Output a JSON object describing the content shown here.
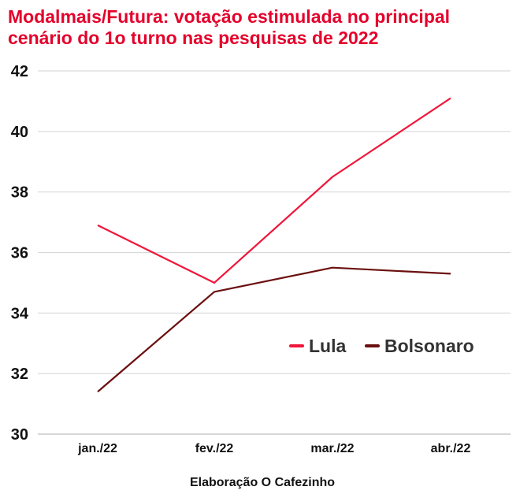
{
  "chart_data": {
    "type": "line",
    "title": "Modalmais/Futura: votação estimulada no principal\ncenário do 1o turno nas pesquisas de 2022",
    "xlabel": "Elaboração O Cafezinho",
    "ylabel": "",
    "categories": [
      "jan./22",
      "fev./22",
      "mar./22",
      "abr./22"
    ],
    "ylim": [
      30,
      42
    ],
    "yticks": [
      30,
      32,
      34,
      36,
      38,
      40,
      42
    ],
    "grid": true,
    "legend_position": "right-middle",
    "series": [
      {
        "name": "Lula",
        "color": "#f0163a",
        "values": [
          36.9,
          35.0,
          38.5,
          41.1
        ]
      },
      {
        "name": "Bolsonaro",
        "color": "#6b0f0f",
        "values": [
          31.4,
          34.7,
          35.5,
          35.3
        ]
      }
    ]
  }
}
